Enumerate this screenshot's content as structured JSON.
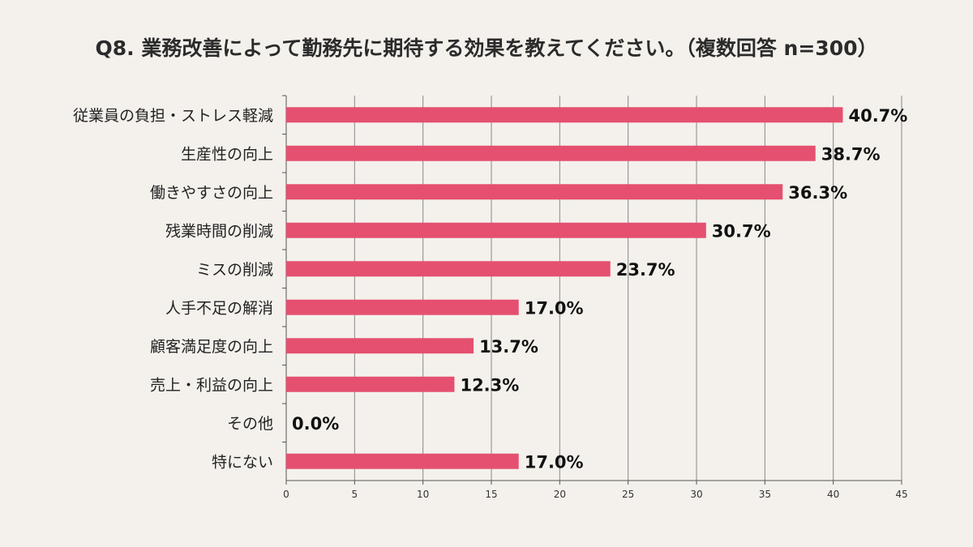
{
  "chart_data": {
    "type": "bar",
    "orientation": "horizontal",
    "title": "Q8. 業務改善によって勤務先に期待する効果を教えてください。（複数回答 n=300）",
    "categories": [
      "従業員の負担・ストレス軽減",
      "生産性の向上",
      "働きやすさの向上",
      "残業時間の削減",
      "ミスの削減",
      "人手不足の解消",
      "顧客満足度の向上",
      "売上・利益の向上",
      "その他",
      "特にない"
    ],
    "values": [
      40.7,
      38.7,
      36.3,
      30.7,
      23.7,
      17.0,
      13.7,
      12.3,
      0.0,
      17.0
    ],
    "value_labels": [
      "40.7%",
      "38.7%",
      "36.3%",
      "30.7%",
      "23.7%",
      "17.0%",
      "13.7%",
      "12.3%",
      "0.0%",
      "17.0%"
    ],
    "xlim": [
      0,
      45
    ],
    "xticks": [
      0,
      5,
      10,
      15,
      20,
      25,
      30,
      35,
      40,
      45
    ],
    "xlabel": "",
    "ylabel": "",
    "grid": true,
    "legend": "none",
    "bar_color": "#e55070",
    "grid_color": "#888888"
  }
}
